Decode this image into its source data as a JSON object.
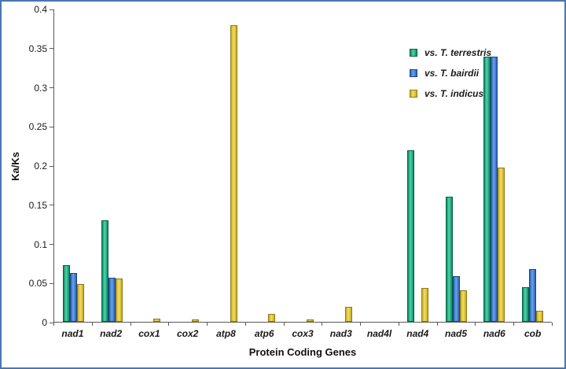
{
  "chart_data": {
    "type": "bar",
    "title": "",
    "xlabel": "Protein Coding Genes",
    "ylabel": "Ka/Ks",
    "ylim": [
      0,
      0.4
    ],
    "yticks": [
      0,
      0.05,
      0.1,
      0.15,
      0.2,
      0.25,
      0.3,
      0.35,
      0.4
    ],
    "ytick_labels": [
      "0",
      "0.05",
      "0.1",
      "0.15",
      "0.2",
      "0.25",
      "0.3",
      "0.35",
      "0.4"
    ],
    "categories": [
      "nad1",
      "nad2",
      "cox1",
      "cox2",
      "atp8",
      "atp6",
      "cox3",
      "nad3",
      "nad4l",
      "nad4",
      "nad5",
      "nad6",
      "cob"
    ],
    "series": [
      {
        "name": "vs. T. terrestris",
        "color": "#00A87D",
        "values": [
          0.073,
          0.13,
          0,
          0,
          0,
          0,
          0,
          0,
          0,
          0.22,
          0.16,
          0.34,
          0.044
        ]
      },
      {
        "name": "vs. T. bairdii",
        "color": "#3F7FD9",
        "values": [
          0.062,
          0.056,
          0,
          0,
          0,
          0,
          0,
          0,
          0,
          0,
          0.058,
          0.34,
          0.068
        ]
      },
      {
        "name": "vs. T. indicus",
        "color": "#E0C52E",
        "values": [
          0.048,
          0.055,
          0.004,
          0.003,
          0.38,
          0.01,
          0.003,
          0.019,
          0,
          0.043,
          0.04,
          0.198,
          0.014
        ]
      }
    ],
    "legend_position": "upper-right-of-center",
    "grid": false,
    "frame_color": "#4a76ad"
  }
}
